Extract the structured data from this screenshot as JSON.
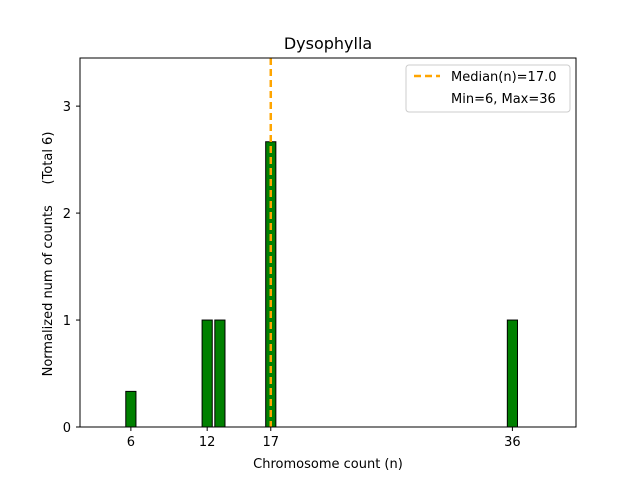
{
  "chart_data": {
    "type": "bar",
    "title": "Dysophylla",
    "xlabel": "Chromosome count (n)",
    "ylabel": "Normalized num of counts     (Total 6)",
    "xlim": [
      2,
      41
    ],
    "ylim": [
      0,
      3.45
    ],
    "x_ticks": [
      6,
      12,
      17,
      36
    ],
    "y_ticks": [
      0,
      1,
      2,
      3
    ],
    "bars": [
      {
        "x": 6,
        "value": 0.333
      },
      {
        "x": 12,
        "value": 1.0
      },
      {
        "x": 13,
        "value": 1.0
      },
      {
        "x": 17,
        "value": 2.667
      },
      {
        "x": 36,
        "value": 1.0
      }
    ],
    "bar_width": 0.8,
    "bar_color": "#008000",
    "bar_edge_color": "#000000",
    "median": {
      "value": 17.0,
      "color": "#FFA500",
      "label": "Median(n)=17.0"
    },
    "legend": {
      "placement": "top-right",
      "entries": [
        {
          "label": "Median(n)=17.0",
          "style": "dashed-line",
          "color": "#FFA500"
        },
        {
          "label": "Min=6, Max=36",
          "style": "none"
        }
      ]
    },
    "grid": false
  }
}
